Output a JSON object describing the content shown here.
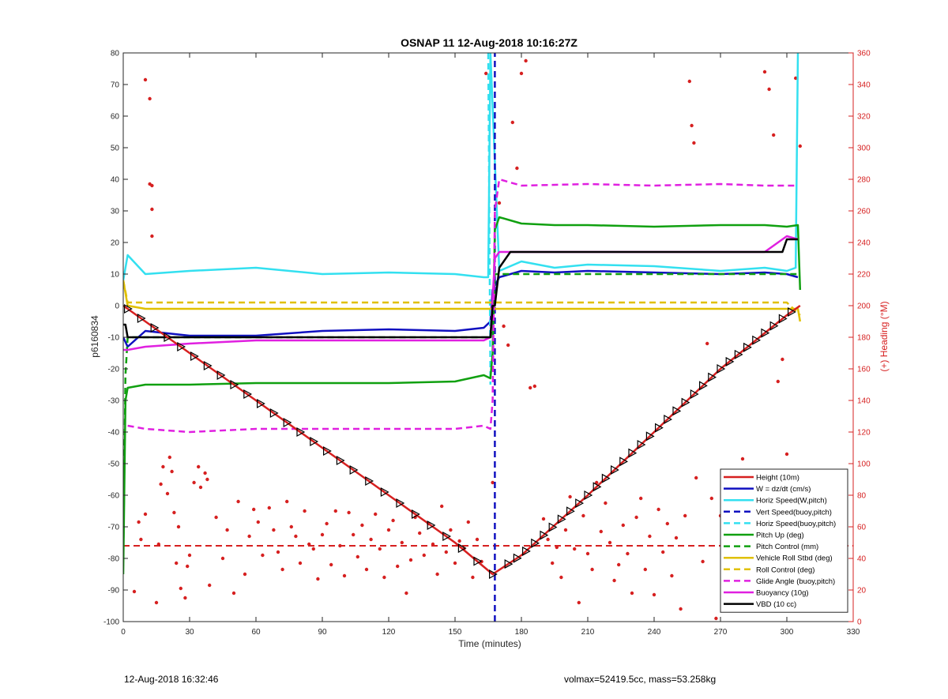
{
  "chart_data": {
    "type": "line",
    "title": "OSNAP 11 12-Aug-2018 10:16:27Z",
    "xlabel": "Time (minutes)",
    "ylabel": "p6160834",
    "ylabel_right": "(+) Heading (°M)",
    "xlim": [
      0,
      330
    ],
    "ylim": [
      -100,
      80
    ],
    "ylim_right": [
      0,
      360
    ],
    "x_ticks": [
      "0",
      "30",
      "60",
      "90",
      "120",
      "150",
      "180",
      "210",
      "240",
      "270",
      "300",
      "330"
    ],
    "y_ticks": [
      "80",
      "70",
      "60",
      "50",
      "40",
      "30",
      "20",
      "10",
      "0",
      "-10",
      "-20",
      "-30",
      "-40",
      "-50",
      "-60",
      "-70",
      "-80",
      "-90",
      "-100"
    ],
    "y_right_ticks": [
      "360",
      "340",
      "320",
      "300",
      "280",
      "260",
      "240",
      "220",
      "200",
      "180",
      "160",
      "140",
      "120",
      "100",
      "80",
      "60",
      "40",
      "20",
      "0"
    ],
    "legend_position": "bottom-right",
    "grid": false,
    "series": [
      {
        "name": "Height (10m)",
        "color": "#d62020",
        "style": "solid",
        "x": [
          0,
          30,
          60,
          90,
          120,
          150,
          167,
          180,
          210,
          240,
          270,
          300,
          306
        ],
        "y": [
          0,
          -15,
          -30,
          -45,
          -60,
          -75,
          -85,
          -79,
          -60,
          -40,
          -20,
          -3,
          0
        ]
      },
      {
        "name": "W = dz/dt (cm/s)",
        "color": "#1010c0",
        "style": "solid",
        "x": [
          0,
          2,
          10,
          30,
          60,
          90,
          120,
          150,
          163,
          166,
          167,
          170,
          180,
          195,
          210,
          240,
          270,
          290,
          300,
          305
        ],
        "y": [
          -10,
          -13,
          -8,
          -9.5,
          -9.5,
          -8,
          -7.5,
          -8,
          -7,
          -5,
          5,
          9,
          11,
          10.5,
          11,
          10.5,
          10,
          10.5,
          10,
          9
        ]
      },
      {
        "name": "Horiz Speed(W,pitch)",
        "color": "#33e0f0",
        "style": "solid",
        "x": [
          0,
          2,
          10,
          30,
          60,
          90,
          120,
          150,
          163,
          165,
          166,
          170,
          180,
          195,
          210,
          240,
          270,
          290,
          300,
          304,
          305
        ],
        "y": [
          8,
          16,
          10,
          11,
          12,
          10,
          10.5,
          10,
          9,
          9,
          80,
          11,
          14,
          12,
          13,
          12.5,
          11,
          12,
          11,
          12,
          80
        ]
      },
      {
        "name": "Vert Speed(buoy,pitch)",
        "color": "#1010c0",
        "style": "dashed",
        "x": [
          168,
          168
        ],
        "y": [
          -100,
          80
        ]
      },
      {
        "name": "Horiz Speed(buoy,pitch)",
        "color": "#33e0f0",
        "style": "dashed",
        "x": [
          165,
          166
        ],
        "y": [
          80,
          -25
        ]
      },
      {
        "name": "Pitch Up (deg)",
        "color": "#10a010",
        "style": "solid",
        "x": [
          0,
          1,
          2,
          10,
          30,
          60,
          90,
          120,
          150,
          163,
          166,
          167,
          168,
          170,
          180,
          195,
          210,
          240,
          270,
          290,
          300,
          305,
          306
        ],
        "y": [
          -85,
          -30,
          -26,
          -25,
          -25,
          -24.5,
          -24.5,
          -24.5,
          -24,
          -22,
          -23,
          -15,
          24,
          28,
          26,
          25.5,
          25.5,
          25,
          25.5,
          25.5,
          25,
          25.5,
          5
        ]
      },
      {
        "name": "Pitch Control (mm)",
        "color": "#10a010",
        "style": "dashed",
        "x": [
          0,
          1,
          2,
          30,
          60,
          90,
          120,
          150,
          163,
          167,
          168,
          170,
          180,
          210,
          240,
          270,
          290,
          300,
          305
        ],
        "y": [
          -80,
          -22,
          -10,
          -10,
          -10,
          -10,
          -10,
          -10,
          -10,
          -10,
          10,
          10,
          10,
          10,
          10,
          10,
          10,
          10,
          10
        ]
      },
      {
        "name": "Vehicle Roll Stbd (deg)",
        "color": "#e0c000",
        "style": "solid",
        "x": [
          0,
          2,
          10,
          30,
          60,
          90,
          120,
          150,
          163,
          170,
          180,
          210,
          240,
          270,
          300,
          305,
          306
        ],
        "y": [
          8,
          0,
          -1,
          -1,
          -1,
          -1,
          -1,
          -1,
          -1,
          -1,
          -1,
          -1,
          -1,
          -1,
          -1,
          -1,
          -5
        ]
      },
      {
        "name": "Roll Control (deg)",
        "color": "#e0c000",
        "style": "dashed",
        "x": [
          0,
          2,
          30,
          60,
          90,
          120,
          150,
          163,
          170,
          180,
          210,
          240,
          270,
          300,
          306
        ],
        "y": [
          8,
          1,
          1,
          1,
          1,
          1,
          1,
          1,
          1,
          1,
          1,
          1,
          1,
          1,
          -3
        ]
      },
      {
        "name": "Glide Angle (buoy,pitch)",
        "color": "#e020e0",
        "style": "dashed",
        "x": [
          2,
          10,
          30,
          60,
          90,
          120,
          150,
          163,
          166,
          167,
          168,
          170,
          180,
          210,
          240,
          270,
          290,
          300,
          305
        ],
        "y": [
          -38,
          -39,
          -40,
          -39,
          -39,
          -39,
          -39,
          -38,
          -39,
          -30,
          30,
          40,
          38,
          38.5,
          38,
          38.5,
          38,
          38,
          38
        ]
      },
      {
        "name": "Buoyancy (10g)",
        "color": "#e020e0",
        "style": "solid",
        "x": [
          0,
          2,
          10,
          30,
          60,
          90,
          120,
          150,
          163,
          166,
          168,
          170,
          180,
          210,
          240,
          270,
          290,
          300,
          305
        ],
        "y": [
          -14,
          -14,
          -13,
          -12,
          -11,
          -11,
          -11,
          -11,
          -11,
          -10,
          15,
          17,
          17,
          17,
          17,
          17,
          17,
          22,
          21
        ]
      },
      {
        "name": "VBD (10 cc)",
        "color": "#000000",
        "style": "solid",
        "x": [
          0,
          1,
          2,
          30,
          60,
          90,
          120,
          150,
          163,
          166,
          167,
          168,
          170,
          175,
          210,
          240,
          270,
          290,
          298,
          300,
          305
        ],
        "y": [
          -6,
          -6,
          -10,
          -10,
          -10,
          -10,
          -10,
          -10,
          -10,
          -10,
          0,
          0,
          12,
          17,
          17,
          17,
          17,
          17,
          17,
          21,
          21
        ]
      }
    ],
    "heading_dots": [
      [
        10,
        343
      ],
      [
        12,
        331
      ],
      [
        12,
        277
      ],
      [
        13,
        276
      ],
      [
        13,
        261
      ],
      [
        13,
        244
      ],
      [
        5,
        19
      ],
      [
        7,
        63
      ],
      [
        8,
        52
      ],
      [
        10,
        68
      ],
      [
        15,
        12
      ],
      [
        16,
        49
      ],
      [
        17,
        87
      ],
      [
        18,
        98
      ],
      [
        20,
        81
      ],
      [
        21,
        104
      ],
      [
        22,
        95
      ],
      [
        23,
        69
      ],
      [
        24,
        37
      ],
      [
        25,
        60
      ],
      [
        26,
        21
      ],
      [
        28,
        15
      ],
      [
        29,
        35
      ],
      [
        30,
        42
      ],
      [
        32,
        88
      ],
      [
        34,
        98
      ],
      [
        35,
        85
      ],
      [
        37,
        94
      ],
      [
        38,
        90
      ],
      [
        39,
        23
      ],
      [
        42,
        66
      ],
      [
        45,
        40
      ],
      [
        47,
        58
      ],
      [
        50,
        18
      ],
      [
        52,
        76
      ],
      [
        55,
        30
      ],
      [
        57,
        54
      ],
      [
        59,
        71
      ],
      [
        61,
        63
      ],
      [
        63,
        42
      ],
      [
        66,
        72
      ],
      [
        68,
        58
      ],
      [
        70,
        44
      ],
      [
        72,
        33
      ],
      [
        74,
        76
      ],
      [
        76,
        60
      ],
      [
        78,
        54
      ],
      [
        80,
        37
      ],
      [
        82,
        70
      ],
      [
        84,
        49
      ],
      [
        86,
        46
      ],
      [
        88,
        27
      ],
      [
        90,
        55
      ],
      [
        92,
        62
      ],
      [
        94,
        36
      ],
      [
        96,
        70
      ],
      [
        98,
        48
      ],
      [
        100,
        29
      ],
      [
        102,
        69
      ],
      [
        104,
        55
      ],
      [
        106,
        41
      ],
      [
        108,
        61
      ],
      [
        110,
        33
      ],
      [
        112,
        52
      ],
      [
        114,
        68
      ],
      [
        116,
        46
      ],
      [
        118,
        28
      ],
      [
        120,
        58
      ],
      [
        122,
        64
      ],
      [
        124,
        35
      ],
      [
        126,
        50
      ],
      [
        128,
        18
      ],
      [
        130,
        39
      ],
      [
        132,
        66
      ],
      [
        134,
        56
      ],
      [
        136,
        42
      ],
      [
        138,
        62
      ],
      [
        140,
        49
      ],
      [
        142,
        30
      ],
      [
        144,
        73
      ],
      [
        146,
        44
      ],
      [
        148,
        58
      ],
      [
        150,
        37
      ],
      [
        152,
        51
      ],
      [
        154,
        46
      ],
      [
        156,
        63
      ],
      [
        158,
        28
      ],
      [
        160,
        52
      ],
      [
        162,
        38
      ],
      [
        164,
        347
      ],
      [
        167,
        88
      ],
      [
        170,
        265
      ],
      [
        172,
        187
      ],
      [
        174,
        175
      ],
      [
        176,
        316
      ],
      [
        178,
        287
      ],
      [
        180,
        347
      ],
      [
        182,
        355
      ],
      [
        184,
        148
      ],
      [
        186,
        149
      ],
      [
        190,
        65
      ],
      [
        192,
        52
      ],
      [
        194,
        37
      ],
      [
        196,
        47
      ],
      [
        198,
        28
      ],
      [
        200,
        58
      ],
      [
        202,
        79
      ],
      [
        204,
        46
      ],
      [
        206,
        12
      ],
      [
        208,
        67
      ],
      [
        210,
        43
      ],
      [
        212,
        33
      ],
      [
        214,
        88
      ],
      [
        216,
        57
      ],
      [
        218,
        75
      ],
      [
        220,
        50
      ],
      [
        222,
        26
      ],
      [
        224,
        36
      ],
      [
        226,
        61
      ],
      [
        228,
        43
      ],
      [
        230,
        18
      ],
      [
        232,
        66
      ],
      [
        234,
        78
      ],
      [
        236,
        33
      ],
      [
        238,
        54
      ],
      [
        240,
        17
      ],
      [
        242,
        71
      ],
      [
        244,
        44
      ],
      [
        246,
        62
      ],
      [
        248,
        29
      ],
      [
        250,
        53
      ],
      [
        252,
        8
      ],
      [
        254,
        67
      ],
      [
        256,
        342
      ],
      [
        257,
        314
      ],
      [
        258,
        303
      ],
      [
        259,
        91
      ],
      [
        262,
        38
      ],
      [
        264,
        176
      ],
      [
        266,
        78
      ],
      [
        268,
        2
      ],
      [
        270,
        67
      ],
      [
        272,
        22
      ],
      [
        274,
        56
      ],
      [
        276,
        47
      ],
      [
        278,
        38
      ],
      [
        280,
        103
      ],
      [
        282,
        62
      ],
      [
        284,
        71
      ],
      [
        286,
        27
      ],
      [
        288,
        42
      ],
      [
        290,
        348
      ],
      [
        292,
        337
      ],
      [
        294,
        308
      ],
      [
        296,
        152
      ],
      [
        298,
        166
      ],
      [
        300,
        106
      ],
      [
        302,
        42
      ],
      [
        304,
        344
      ],
      [
        306,
        301
      ]
    ],
    "heading_reference": 48
  },
  "footer": {
    "timestamp": "12-Aug-2018 16:32:46",
    "info": "volmax=52419.5cc, mass=53.258kg"
  },
  "colors": {
    "axis": "#262626",
    "right_axis": "#d62020"
  }
}
